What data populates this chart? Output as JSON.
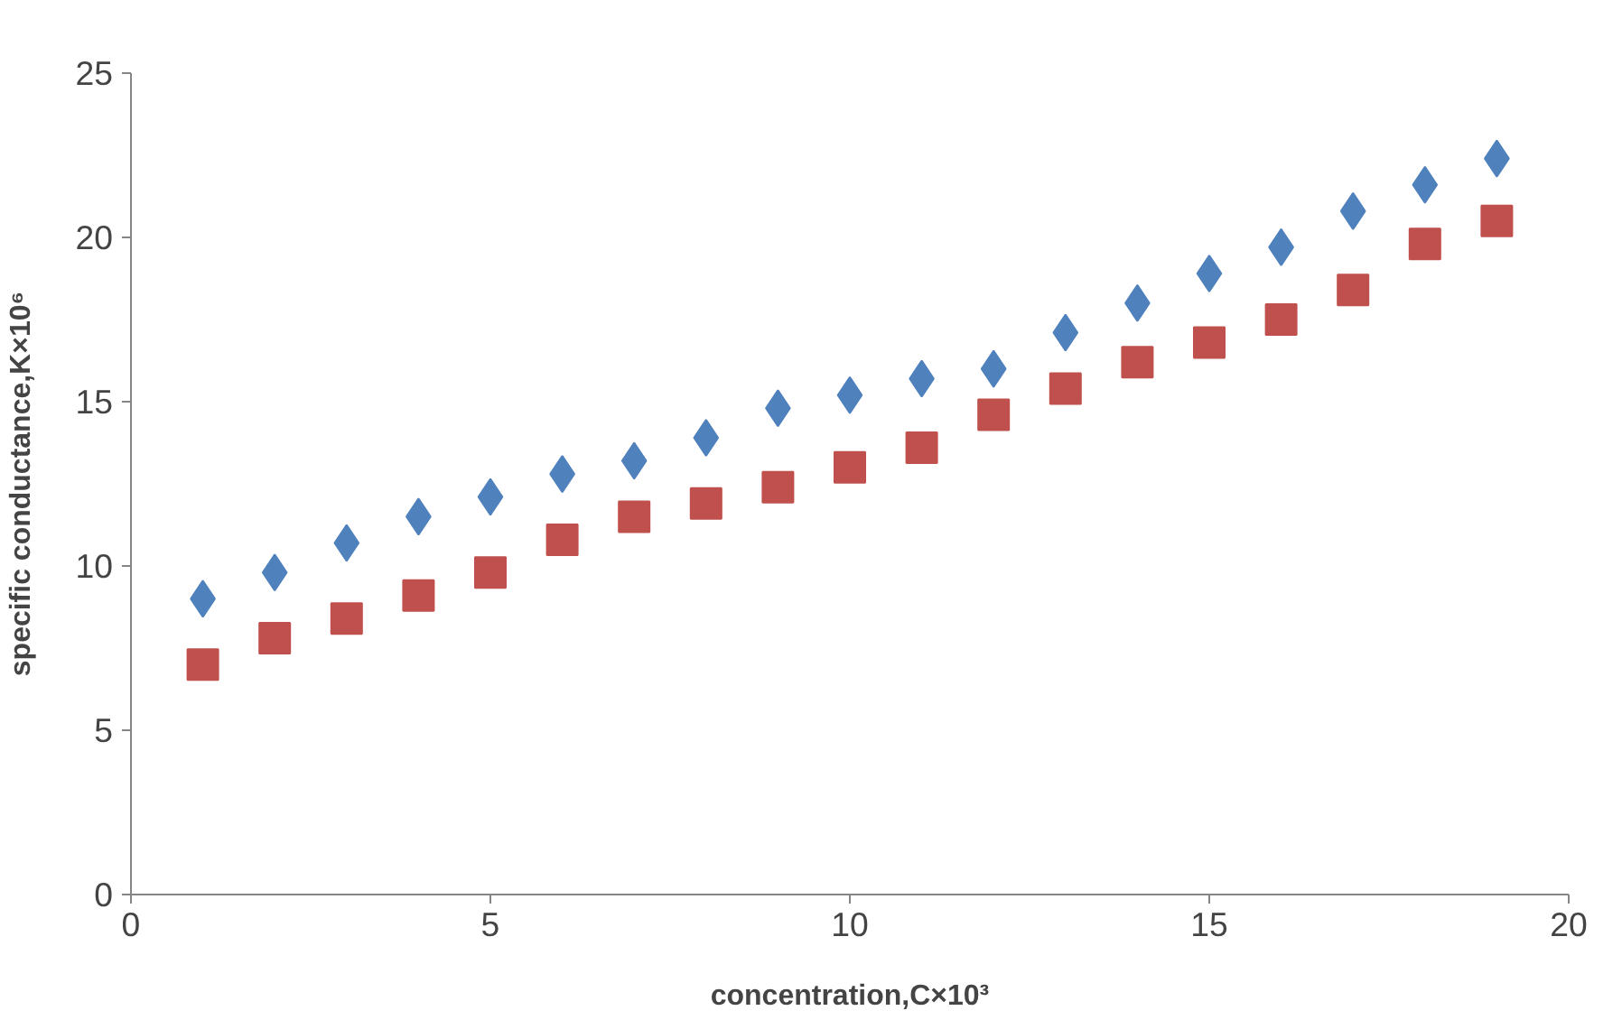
{
  "chart_data": {
    "type": "scatter",
    "xlabel": "concentration,C×10³",
    "ylabel": "specific conductance,K×10⁶",
    "x": [
      1,
      2,
      3,
      4,
      5,
      6,
      7,
      8,
      9,
      10,
      11,
      12,
      13,
      14,
      15,
      16,
      17,
      18,
      19
    ],
    "series": [
      {
        "color": "#4f81bd",
        "marker": "diamond",
        "values": [
          9.0,
          9.8,
          10.7,
          11.5,
          12.1,
          12.8,
          13.2,
          13.9,
          14.8,
          15.2,
          15.7,
          16.0,
          17.1,
          18.0,
          18.9,
          19.7,
          20.8,
          21.6,
          22.4
        ]
      },
      {
        "color": "#c0504d",
        "marker": "square",
        "values": [
          7.0,
          7.8,
          8.4,
          9.1,
          9.8,
          10.8,
          11.5,
          11.9,
          12.4,
          13.0,
          13.6,
          14.6,
          15.4,
          16.2,
          16.8,
          17.5,
          18.4,
          19.8,
          20.5
        ]
      }
    ],
    "xlim": [
      0,
      20
    ],
    "xticks": [
      0,
      5,
      10,
      15,
      20
    ],
    "ylim": [
      0,
      25
    ],
    "yticks": [
      0,
      5,
      10,
      15,
      20,
      25
    ],
    "grid": false
  }
}
